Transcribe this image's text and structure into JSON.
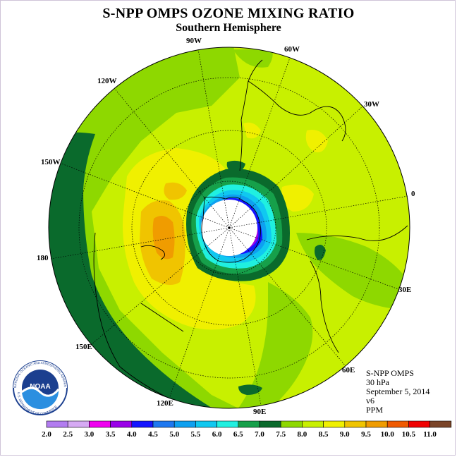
{
  "title": "S-NPP OMPS OZONE MIXING RATIO",
  "subtitle": "Southern Hemisphere",
  "longitude_labels": [
    "90W",
    "60W",
    "30W",
    "0",
    "30E",
    "60E",
    "90E",
    "120E",
    "150E",
    "180",
    "150W",
    "120W"
  ],
  "info": {
    "instrument": "S-NPP OMPS",
    "level": "30 hPa",
    "date": "September 5, 2014",
    "version": "v6",
    "units": "PPM"
  },
  "colorbar": {
    "labels": [
      "2.0",
      "2.5",
      "3.0",
      "3.5",
      "4.0",
      "4.5",
      "5.0",
      "5.5",
      "6.0",
      "6.5",
      "7.0",
      "7.5",
      "8.0",
      "8.5",
      "9.0",
      "9.5",
      "10.0",
      "10.5",
      "11.0"
    ],
    "colors": [
      "#b27cf0",
      "#d6aaf3",
      "#f000f0",
      "#9a00e8",
      "#1414ff",
      "#1e78f0",
      "#0ea0f0",
      "#10c8f0",
      "#20f0e0",
      "#16a04a",
      "#0a6a2c",
      "#8ed800",
      "#c8f000",
      "#f0f000",
      "#f0c400",
      "#f09c00",
      "#f05a00",
      "#f00000",
      "#7a4428"
    ]
  },
  "logo": {
    "text": "NOAA",
    "ring_text": "NATIONAL OCEANIC AND ATMOSPHERIC ADMINISTRATION",
    "ring_text_bottom": "U.S. DEPARTMENT OF COMMERCE"
  }
}
